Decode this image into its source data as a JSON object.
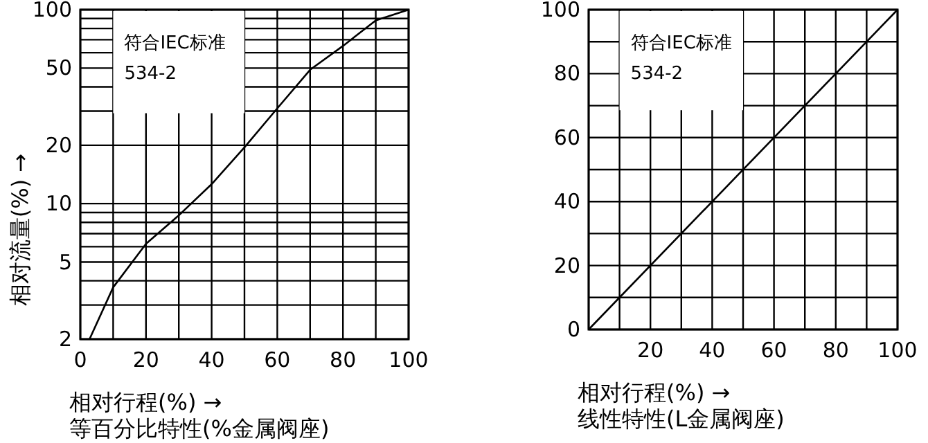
{
  "chart_data": [
    {
      "type": "line",
      "title": "等百分比特性(%金属阀座)",
      "xlabel": "相对行程(%) →",
      "ylabel": "相对流量(%) →",
      "annotations": [
        "符合IEC标准",
        "534-2"
      ],
      "x": [
        2.8,
        10,
        20,
        30,
        40,
        50,
        60,
        70,
        80,
        90,
        100
      ],
      "values": [
        2,
        3.7,
        6.2,
        8.7,
        12.6,
        19.5,
        31,
        49,
        65,
        88,
        100
      ],
      "color": "#000000",
      "xlim": [
        0,
        100
      ],
      "ylim": [
        2,
        100
      ],
      "log": "y",
      "grid": true,
      "xticks": [
        0,
        {
          "value": 10,
          "label": null
        },
        20,
        {
          "value": 30,
          "label": null
        },
        40,
        {
          "value": 50,
          "label": null
        },
        60,
        {
          "value": 70,
          "label": null
        },
        80,
        {
          "value": 90,
          "label": null
        },
        100
      ],
      "yticks": [
        2,
        {
          "value": 3,
          "label": null
        },
        {
          "value": 4,
          "label": null
        },
        5,
        {
          "value": 6,
          "label": null
        },
        {
          "value": 7,
          "label": null
        },
        {
          "value": 8,
          "label": null
        },
        {
          "value": 9,
          "label": null
        },
        10,
        20,
        {
          "value": 30,
          "label": null
        },
        {
          "value": 40,
          "label": null
        },
        50,
        {
          "value": 60,
          "label": null
        },
        {
          "value": 70,
          "label": null
        },
        {
          "value": 80,
          "label": null
        },
        {
          "value": 90,
          "label": null
        },
        100
      ]
    },
    {
      "type": "line",
      "title": "线性特性(L金属阀座)",
      "xlabel": "相对行程(%) →",
      "annotations": [
        "符合IEC标准",
        "534-2"
      ],
      "x": [
        0,
        100
      ],
      "values": [
        0,
        100
      ],
      "color": "#000000",
      "xlim": [
        0,
        100
      ],
      "ylim": [
        0,
        100
      ],
      "grid": true,
      "xticks": [
        {
          "value": 0,
          "label": null
        },
        {
          "value": 10,
          "label": null
        },
        20,
        {
          "value": 30,
          "label": null
        },
        40,
        {
          "value": 50,
          "label": null
        },
        60,
        {
          "value": 70,
          "label": null
        },
        80,
        {
          "value": 90,
          "label": null
        },
        100
      ],
      "yticks": [
        0,
        {
          "value": 10,
          "label": null
        },
        20,
        {
          "value": 30,
          "label": null
        },
        40,
        {
          "value": 50,
          "label": null
        },
        60,
        {
          "value": 70,
          "label": null
        },
        80,
        {
          "value": 90,
          "label": null
        },
        100
      ]
    }
  ]
}
